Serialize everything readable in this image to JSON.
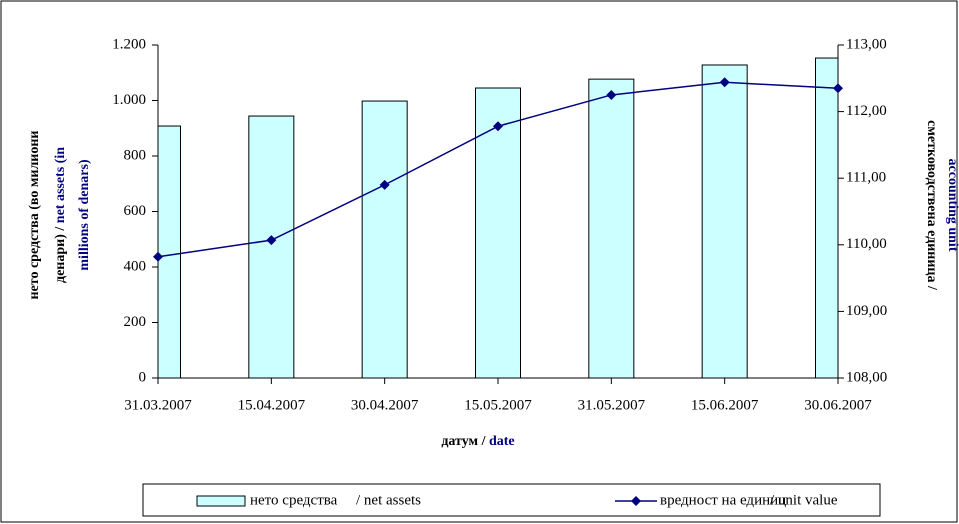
{
  "chart_data": {
    "type": "bar_line",
    "categories": [
      "31.03.2007",
      "15.04.2007",
      "30.04.2007",
      "15.05.2007",
      "31.05.2007",
      "15.06.2007",
      "30.06.2007"
    ],
    "series": [
      {
        "name": "нето средства",
        "legend_suffix": "/ net assets",
        "type": "bar",
        "color": "#ccffff",
        "values": [
          908,
          944,
          998,
          1045,
          1077,
          1128,
          1153
        ]
      },
      {
        "name": "вредност на единиц",
        "legend_suffix": "/ unit value",
        "type": "line",
        "axis": "y2",
        "color": "#000080",
        "values": [
          109.82,
          110.07,
          110.9,
          111.78,
          112.25,
          112.44,
          112.35
        ]
      }
    ],
    "ylim": [
      0,
      1200
    ],
    "yticks": [
      0,
      200,
      400,
      600,
      800,
      {
        "value": 1000,
        "label": "1.000"
      },
      {
        "value": 1200,
        "label": "1.200"
      }
    ],
    "y2lim": [
      108,
      113
    ],
    "y2ticks": [
      {
        "value": 108,
        "label": "108,00"
      },
      {
        "value": 109,
        "label": "109,00"
      },
      {
        "value": 110,
        "label": "110,00"
      },
      {
        "value": 111,
        "label": "111,00"
      },
      {
        "value": 112,
        "label": "112,00"
      },
      {
        "value": 113,
        "label": "113,00"
      }
    ],
    "x_label": [
      {
        "text": "датум / ",
        "color": "#000000"
      },
      {
        "text": "date",
        "color": "#000080"
      }
    ],
    "y_label": [
      [
        {
          "text": "нето средства (во милиони",
          "color": "#000000"
        }
      ],
      [
        {
          "text": "денари) / ",
          "color": "#000000"
        },
        {
          "text": "net assets (in",
          "color": "#000080"
        }
      ],
      [
        {
          "text": "millions of denars)",
          "color": "#000080"
        }
      ]
    ],
    "y2_label": [
      [
        {
          "text": "сметководствена единица /",
          "color": "#000000"
        }
      ],
      [
        {
          "text": "accounting unit",
          "color": "#000080"
        }
      ]
    ],
    "legend_suffix_color": "#000080"
  }
}
